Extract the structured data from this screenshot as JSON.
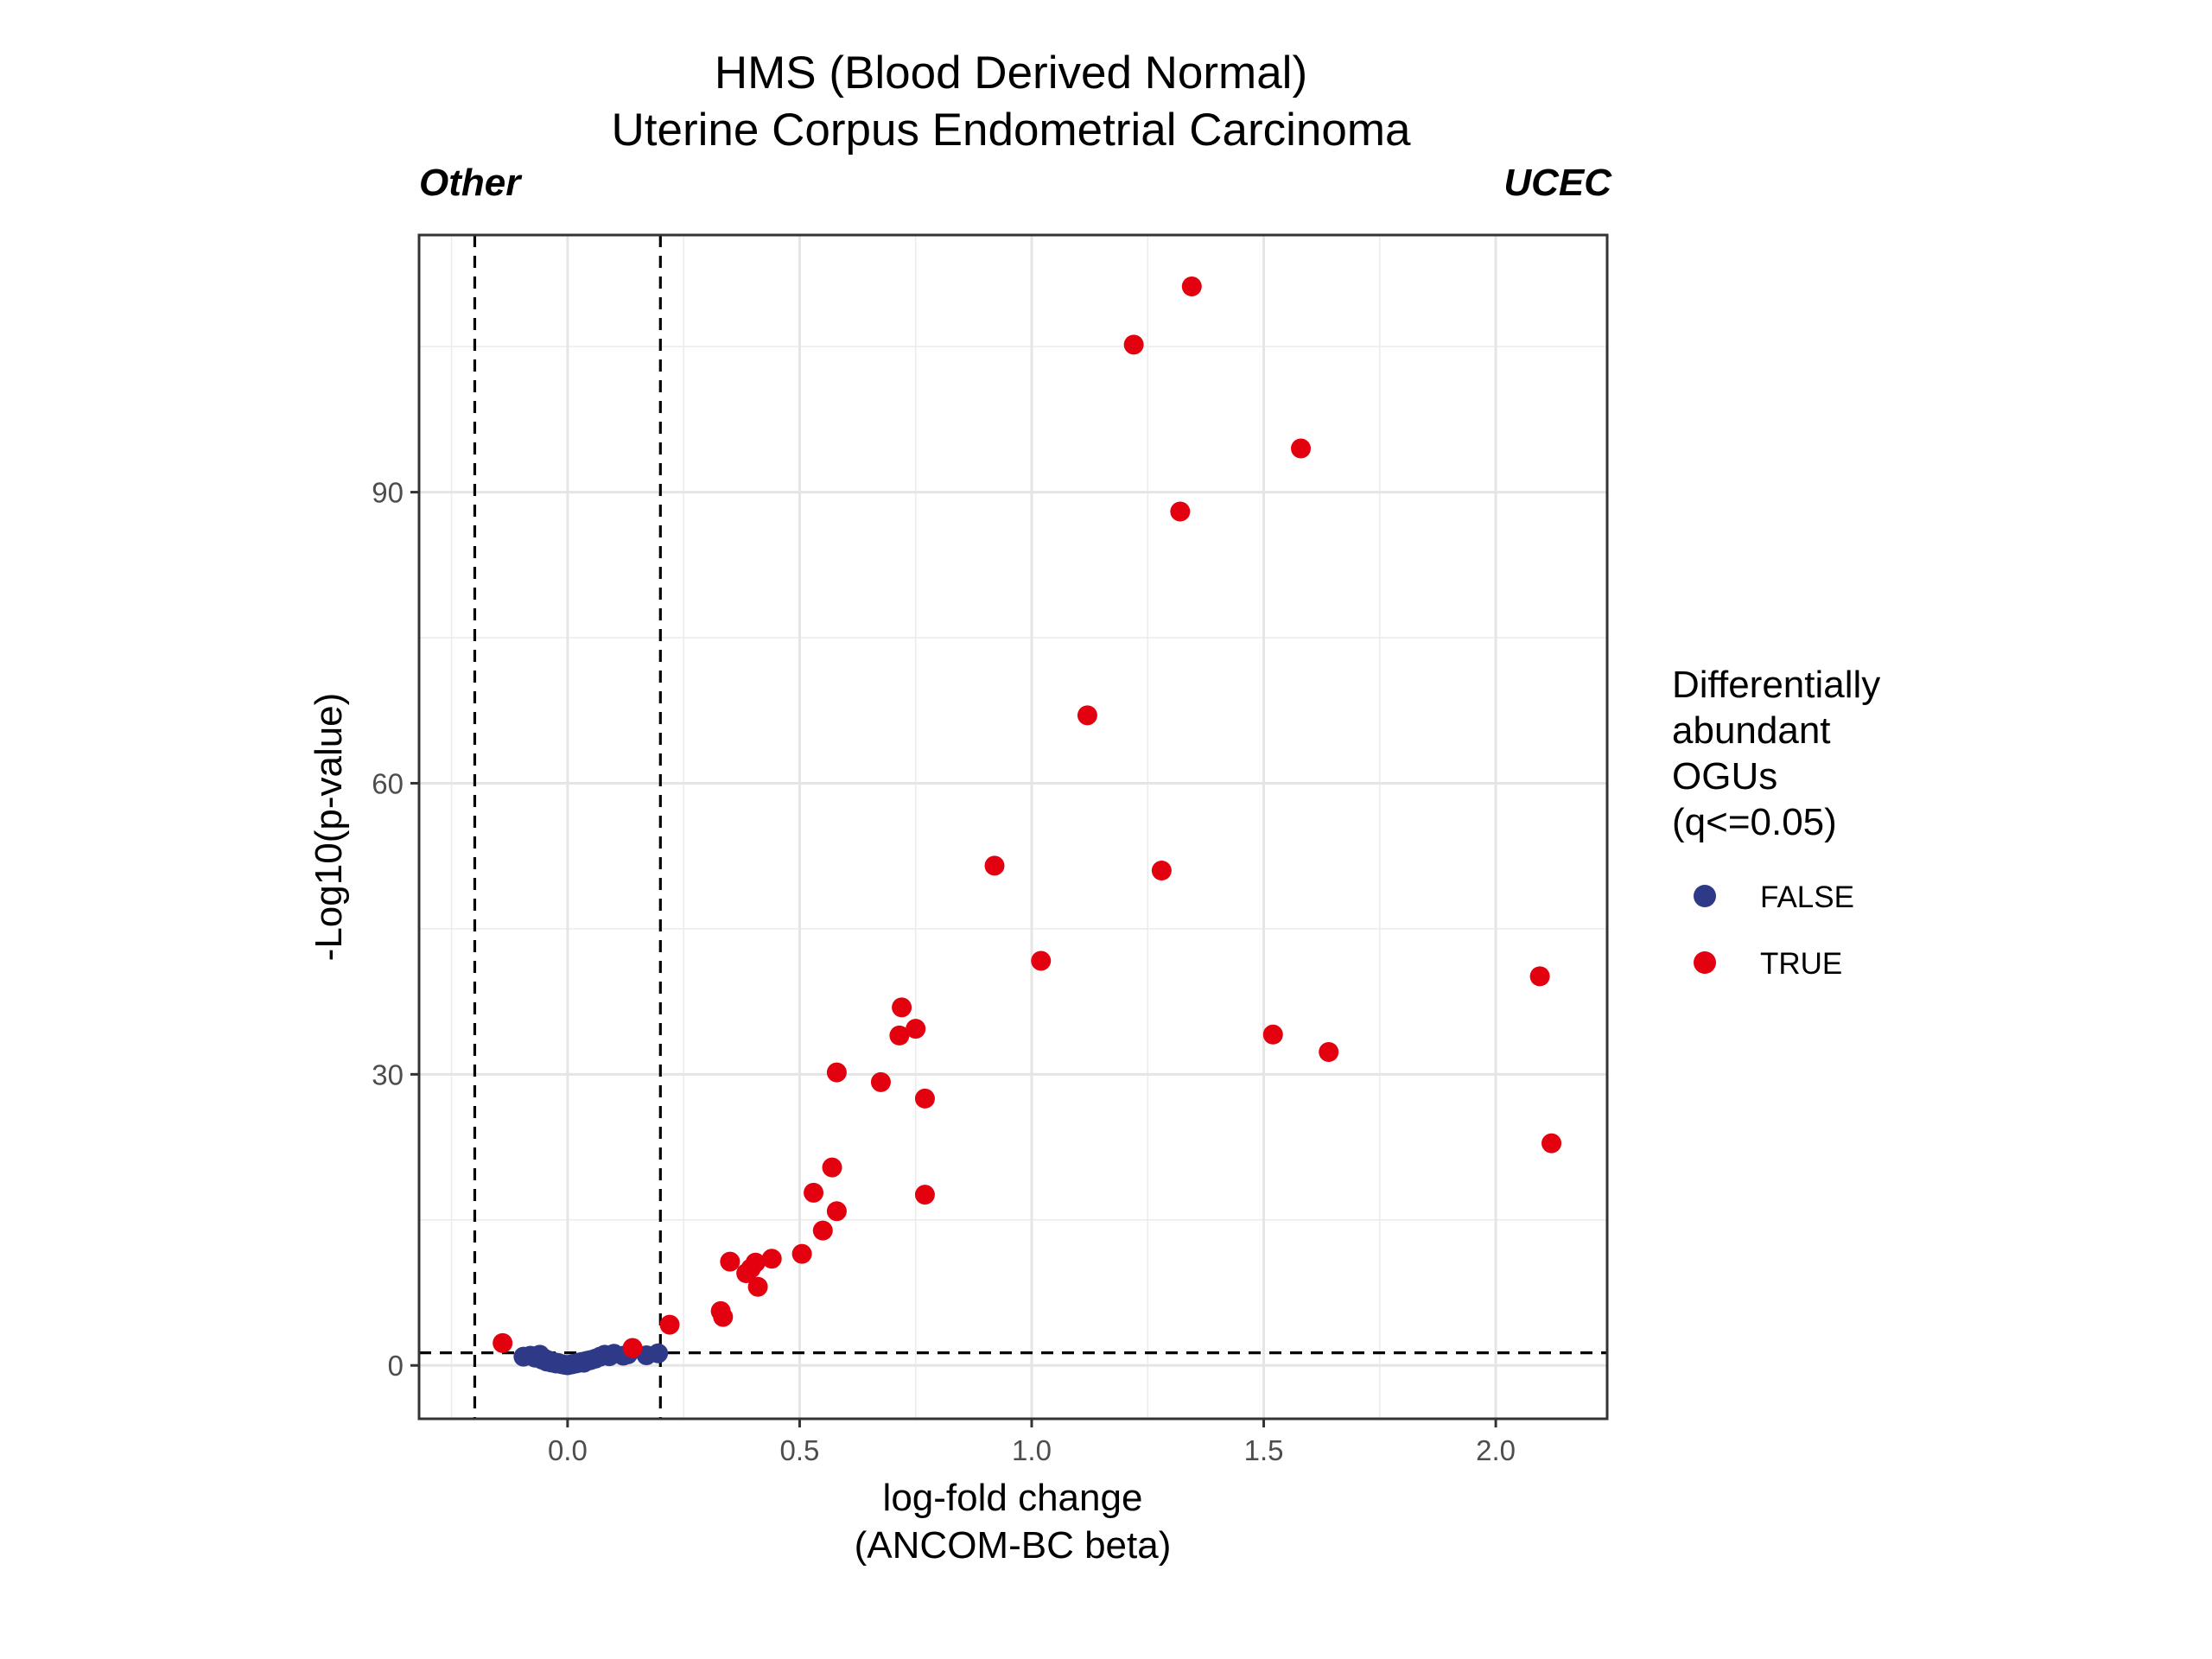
{
  "chart_data": {
    "type": "scatter",
    "title": [
      "HMS (Blood Derived Normal)",
      "Uterine Corpus Endometrial Carcinoma"
    ],
    "corner_left": "Other",
    "corner_right": "UCEC",
    "xlabel": [
      "log-fold change",
      "(ANCOM-BC beta)"
    ],
    "ylabel": "-Log10(p-value)",
    "xlim": [
      -0.32,
      2.24
    ],
    "ylim": [
      -5.5,
      116.5
    ],
    "xticks": [
      0.0,
      0.5,
      1.0,
      1.5,
      2.0
    ],
    "xtick_labels": [
      "0.0",
      "0.5",
      "1.0",
      "1.5",
      "2.0"
    ],
    "yticks": [
      0,
      30,
      60,
      90
    ],
    "ytick_labels": [
      "0",
      "30",
      "60",
      "90"
    ],
    "grid": true,
    "threshold_lines": {
      "vertical": [
        -0.2,
        0.2
      ],
      "horizontal": [
        1.3
      ]
    },
    "legend": {
      "title": [
        "Differentially",
        "abundant",
        "OGUs",
        "(q<=0.05)"
      ],
      "position": "right",
      "entries": [
        {
          "label": "FALSE",
          "color": "#2E3A87"
        },
        {
          "label": "TRUE",
          "color": "#E3000F"
        }
      ]
    },
    "series": [
      {
        "name": "FALSE",
        "color": "#2E3A87",
        "points": [
          [
            -0.095,
            0.9
          ],
          [
            -0.08,
            1.0
          ],
          [
            -0.07,
            0.8
          ],
          [
            -0.06,
            1.1
          ],
          [
            -0.055,
            0.6
          ],
          [
            -0.05,
            0.7
          ],
          [
            -0.045,
            0.4
          ],
          [
            -0.04,
            0.5
          ],
          [
            -0.035,
            0.3
          ],
          [
            -0.03,
            0.35
          ],
          [
            -0.025,
            0.2
          ],
          [
            -0.02,
            0.25
          ],
          [
            -0.015,
            0.15
          ],
          [
            -0.01,
            0.1
          ],
          [
            -0.005,
            0.05
          ],
          [
            0.0,
            0.02
          ],
          [
            0.005,
            0.08
          ],
          [
            0.01,
            0.12
          ],
          [
            0.015,
            0.18
          ],
          [
            0.02,
            0.22
          ],
          [
            0.025,
            0.3
          ],
          [
            0.03,
            0.35
          ],
          [
            0.035,
            0.28
          ],
          [
            0.04,
            0.45
          ],
          [
            0.045,
            0.5
          ],
          [
            0.05,
            0.55
          ],
          [
            0.06,
            0.7
          ],
          [
            0.07,
            0.9
          ],
          [
            0.08,
            1.1
          ],
          [
            0.09,
            0.95
          ],
          [
            0.1,
            1.2
          ],
          [
            0.12,
            1.0
          ],
          [
            0.13,
            1.15
          ],
          [
            0.17,
            1.05
          ],
          [
            0.195,
            1.25
          ]
        ]
      },
      {
        "name": "TRUE",
        "color": "#E3000F",
        "points": [
          [
            -0.14,
            2.3
          ],
          [
            0.14,
            1.8
          ],
          [
            0.22,
            4.2
          ],
          [
            0.33,
            5.6
          ],
          [
            0.335,
            5.0
          ],
          [
            0.35,
            10.7
          ],
          [
            0.385,
            9.5
          ],
          [
            0.395,
            10.0
          ],
          [
            0.405,
            10.6
          ],
          [
            0.41,
            8.1
          ],
          [
            0.44,
            11.0
          ],
          [
            0.505,
            11.5
          ],
          [
            0.53,
            17.8
          ],
          [
            0.55,
            13.9
          ],
          [
            0.57,
            20.4
          ],
          [
            0.58,
            15.9
          ],
          [
            0.58,
            30.2
          ],
          [
            0.675,
            29.2
          ],
          [
            0.715,
            34.0
          ],
          [
            0.72,
            36.9
          ],
          [
            0.75,
            34.7
          ],
          [
            0.77,
            27.5
          ],
          [
            0.77,
            17.6
          ],
          [
            0.92,
            51.5
          ],
          [
            1.02,
            41.7
          ],
          [
            1.12,
            67.0
          ],
          [
            1.22,
            105.2
          ],
          [
            1.28,
            51.0
          ],
          [
            1.32,
            88.0
          ],
          [
            1.345,
            111.2
          ],
          [
            1.52,
            34.1
          ],
          [
            1.58,
            94.5
          ],
          [
            1.64,
            32.3
          ],
          [
            2.095,
            40.1
          ],
          [
            2.12,
            22.9
          ]
        ]
      }
    ]
  }
}
